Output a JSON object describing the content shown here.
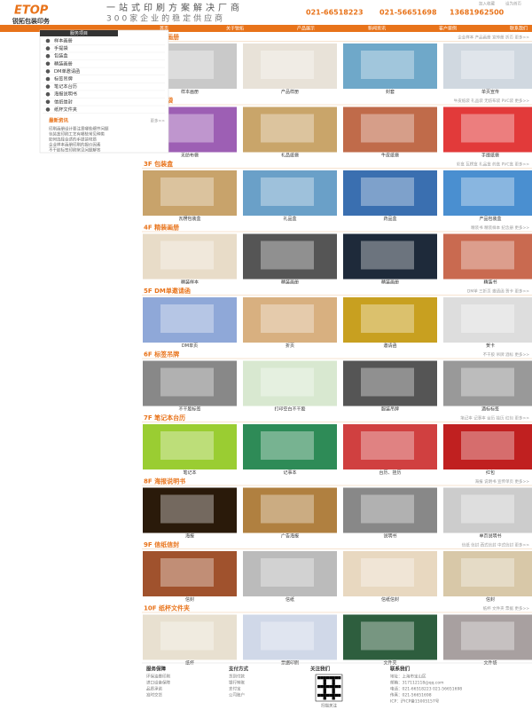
{
  "header": {
    "logo": "ETOP",
    "company": "锐拓包装印务",
    "slogan": "一站式印刷方案解决厂商",
    "slogan2": "300家企业的稳定供应商",
    "phones": [
      "021-66518223",
      "021-56651698",
      "13681962500"
    ],
    "top_links": [
      "加入收藏",
      "设为首页"
    ]
  },
  "nav": [
    "首页",
    "关于锐拓",
    "产品展示",
    "新闻资讯",
    "客户案例",
    "联系我们"
  ],
  "sidebar": {
    "title": "服务项目",
    "items": [
      "样本画册",
      "手提袋",
      "包装盒",
      "精装画册",
      "DM单邀请函",
      "标签吊牌",
      "笔记本台历",
      "海报说明书",
      "信纸信封",
      "纸杯文件夹"
    ],
    "news_title": "最新资讯",
    "more": "更多>>",
    "news": [
      "印刷画册设计要注意哪些细节问题",
      "包装盒印刷工艺有哪些常见种类",
      "如何选择合适的手提袋材质",
      "企业样本画册印刷的报价因素",
      "不干胶标签印刷常见问题解答"
    ]
  },
  "floors": [
    {
      "label": "1F 样本画册",
      "keywords": "企业样本 产品画册 宣传册 折页 更多>>",
      "items": [
        "样本画册",
        "产品样册",
        "封套",
        "单页宣传"
      ]
    },
    {
      "label": "2F 手提袋",
      "keywords": "牛皮纸袋 礼品袋 无纺布袋 PVC袋 更多>>",
      "items": [
        "无纺布袋",
        "礼品纸袋",
        "牛皮纸袋",
        "手提纸袋"
      ]
    },
    {
      "label": "3F 包装盒",
      "keywords": "彩盒 瓦楞盒 礼品盒 药盒 PVC盒 更多>>",
      "items": [
        "瓦楞包装盒",
        "礼品盒",
        "药品盒",
        "产品包装盒"
      ]
    },
    {
      "label": "4F 精装画册",
      "keywords": "精装书 精装样本 纪念册 更多>>",
      "items": [
        "精装样本",
        "精装画册",
        "精装画册",
        "精装书"
      ]
    },
    {
      "label": "5F DM单邀请函",
      "keywords": "DM单 三折页 邀请函 贺卡 更多>>",
      "items": [
        "DM单页",
        "折页",
        "邀请函",
        "贺卡"
      ]
    },
    {
      "label": "6F 标签吊牌",
      "keywords": "不干胶 吊牌 酒标 更多>>",
      "items": [
        "不干胶标签",
        "打印空白不干胶",
        "服装吊牌",
        "酒标标签"
      ]
    },
    {
      "label": "7F 笔记本台历",
      "keywords": "笔记本 记事本 台历 挂历 红包 更多>>",
      "items": [
        "笔记本",
        "记事本",
        "台历、挂历",
        "红包"
      ]
    },
    {
      "label": "8F 海报说明书",
      "keywords": "海报 说明书 宣传单页 更多>>",
      "items": [
        "海报",
        "广告海报",
        "说明书",
        "单页说明书"
      ]
    },
    {
      "label": "9F 信纸信封",
      "keywords": "信纸 信封 西式信封 中式信封 更多>>",
      "items": [
        "信封",
        "信纸",
        "信纸信封",
        "信封"
      ]
    },
    {
      "label": "10F 纸杯文件夹",
      "keywords": "纸杯 文件夹 票据 更多>>",
      "items": [
        "纸杯",
        "票据印刷",
        "文件夹",
        "文件袋"
      ]
    }
  ],
  "footer": {
    "columns": [
      {
        "title": "服务保障",
        "lines": [
          "环保油墨印刷",
          "进口设备保障",
          "品质承诺",
          "准时交货"
        ]
      },
      {
        "title": "支付方式",
        "lines": [
          "货到付款",
          "银行转账",
          "支付宝",
          "公司账户"
        ]
      },
      {
        "title": "关注我们",
        "lines": [
          "扫描关注"
        ]
      },
      {
        "title": "联系我们",
        "lines": [
          "地址：上海市宝山区",
          "邮箱：317112118@qq.com",
          "电话：021-66518223 021-56651698",
          "传真：021-56651698",
          "ICP：沪ICP备15005157号"
        ]
      }
    ]
  }
}
